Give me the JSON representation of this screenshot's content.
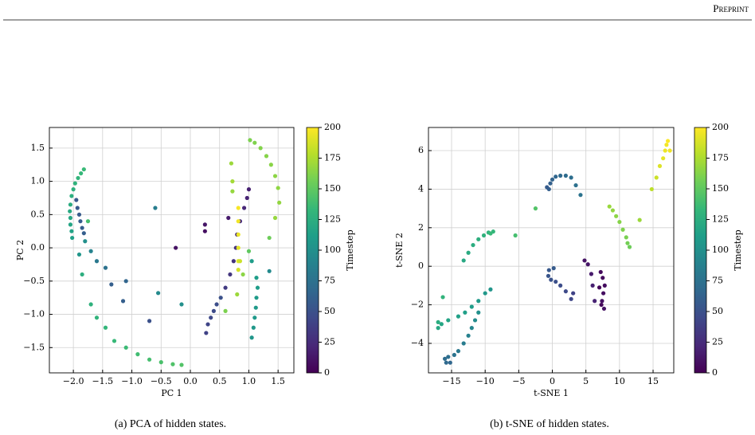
{
  "header": "Preprint",
  "chart_data": [
    {
      "type": "scatter",
      "xlabel": "PC 1",
      "ylabel": "PC 2",
      "caption": "(a) PCA of hidden states.",
      "xlim": [
        -2.41,
        1.77
      ],
      "ylim": [
        -1.88,
        1.81
      ],
      "xticks": [
        {
          "value": -2.0,
          "label": "−2.0"
        },
        {
          "value": -1.5,
          "label": "−1.5"
        },
        {
          "value": -1.0,
          "label": "−1.0"
        },
        {
          "value": -0.5,
          "label": "−0.5"
        },
        {
          "value": 0.0,
          "label": "0.0"
        },
        {
          "value": 0.5,
          "label": "0.5"
        },
        {
          "value": 1.0,
          "label": "1.0"
        },
        {
          "value": 1.5,
          "label": "1.5"
        }
      ],
      "yticks": [
        {
          "value": -1.5,
          "label": "−1.5"
        },
        {
          "value": -1.0,
          "label": "−1.0"
        },
        {
          "value": -0.5,
          "label": "−0.5"
        },
        {
          "value": 0.0,
          "label": "0.0"
        },
        {
          "value": 0.5,
          "label": "0.5"
        },
        {
          "value": 1.0,
          "label": "1.0"
        },
        {
          "value": 1.5,
          "label": "1.5"
        }
      ],
      "grid": true,
      "colorbar_label": "Timestep",
      "clim": [
        0,
        200
      ],
      "cticks": [
        0,
        25,
        50,
        75,
        100,
        125,
        150,
        175,
        200
      ],
      "colormap": [
        "#440154",
        "#482878",
        "#3e4989",
        "#31688e",
        "#26828e",
        "#1f9e89",
        "#35b779",
        "#6ece58",
        "#b5de2b",
        "#fde725"
      ],
      "x": [
        -1.82,
        -1.87,
        -1.92,
        -1.97,
        -2.0,
        -2.03,
        -2.05,
        -2.06,
        -2.05,
        -2.05,
        -2.03,
        -2.02,
        -1.95,
        -1.93,
        -1.9,
        -1.88,
        -1.85,
        -1.82,
        -1.75,
        -1.8,
        -1.7,
        -1.9,
        -1.6,
        -1.45,
        -1.35,
        -1.1,
        -1.15,
        -0.7,
        -0.55,
        -0.6,
        -0.25,
        -0.15,
        -1.85,
        -1.7,
        -1.6,
        -1.45,
        -1.3,
        -1.1,
        -0.9,
        -0.7,
        -0.5,
        -0.3,
        -0.15,
        0.27,
        0.3,
        0.35,
        0.4,
        0.45,
        0.52,
        0.6,
        0.68,
        0.74,
        0.78,
        0.8,
        0.85,
        0.92,
        0.97,
        1.0,
        0.65,
        0.25,
        0.25,
        0.82,
        0.82,
        0.82,
        0.82,
        0.82,
        0.82,
        0.8,
        0.7,
        0.72,
        0.72,
        0.6,
        0.85,
        0.9,
        1.0,
        1.05,
        1.05,
        1.08,
        1.1,
        1.12,
        1.13,
        1.15,
        1.13,
        1.02,
        1.1,
        1.2,
        1.3,
        1.38,
        1.45,
        1.5,
        1.52,
        1.45,
        1.35,
        1.35
      ],
      "y": [
        1.18,
        1.12,
        1.05,
        0.97,
        0.88,
        0.78,
        0.65,
        0.55,
        0.45,
        0.35,
        0.25,
        0.15,
        0.72,
        0.6,
        0.5,
        0.4,
        0.3,
        0.22,
        0.4,
        0.1,
        -0.05,
        -0.1,
        -0.2,
        -0.3,
        -0.55,
        -0.5,
        -0.8,
        -1.1,
        -0.68,
        0.6,
        0.0,
        -0.85,
        -0.4,
        -0.85,
        -1.05,
        -1.2,
        -1.4,
        -1.5,
        -1.6,
        -1.68,
        -1.72,
        -1.75,
        -1.76,
        -1.28,
        -1.15,
        -1.05,
        -0.95,
        -0.85,
        -0.75,
        -0.6,
        -0.4,
        -0.2,
        0.0,
        0.2,
        0.4,
        0.6,
        0.75,
        0.88,
        0.45,
        0.35,
        0.25,
        0.6,
        0.4,
        0.2,
        0.0,
        -0.2,
        -0.33,
        -0.7,
        1.27,
        1.0,
        0.85,
        -0.95,
        -0.2,
        -0.4,
        -0.05,
        -0.2,
        -1.35,
        -1.2,
        -1.05,
        -0.9,
        -0.75,
        -0.6,
        -0.45,
        1.62,
        1.58,
        1.5,
        1.38,
        1.25,
        1.08,
        0.9,
        0.68,
        0.45,
        0.15,
        -0.35
      ],
      "c": [
        135,
        133,
        131,
        129,
        127,
        125,
        123,
        121,
        119,
        117,
        115,
        113,
        55,
        56,
        57,
        58,
        59,
        60,
        140,
        100,
        90,
        105,
        80,
        75,
        60,
        65,
        60,
        50,
        95,
        85,
        10,
        100,
        125,
        128,
        130,
        132,
        134,
        136,
        138,
        140,
        142,
        144,
        145,
        40,
        42,
        44,
        46,
        48,
        50,
        35,
        32,
        30,
        28,
        26,
        24,
        22,
        20,
        18,
        15,
        12,
        8,
        198,
        196,
        194,
        192,
        190,
        188,
        170,
        170,
        172,
        168,
        160,
        185,
        165,
        150,
        110,
        105,
        106,
        107,
        108,
        109,
        110,
        111,
        160,
        161,
        162,
        163,
        164,
        165,
        166,
        167,
        168,
        155,
        95
      ]
    },
    {
      "type": "scatter",
      "xlabel": "t-SNE 1",
      "ylabel": "t-SNE 2",
      "caption": "(b) t-SNE of hidden states.",
      "xlim": [
        -18.44,
        18.08
      ],
      "ylim": [
        -5.53,
        7.2
      ],
      "xticks": [
        {
          "value": -15,
          "label": "−15"
        },
        {
          "value": -10,
          "label": "−10"
        },
        {
          "value": -5,
          "label": "−5"
        },
        0,
        5,
        10,
        15
      ],
      "yticks": [
        {
          "value": -4,
          "label": "−4"
        },
        {
          "value": -2,
          "label": "−2"
        },
        0,
        2,
        4,
        6
      ],
      "grid": true,
      "colorbar_label": "Timestep",
      "clim": [
        0,
        200
      ],
      "cticks": [
        0,
        25,
        50,
        75,
        100,
        125,
        150,
        175,
        200
      ],
      "colormap": [
        "#440154",
        "#482878",
        "#3e4989",
        "#31688e",
        "#26828e",
        "#1f9e89",
        "#35b779",
        "#6ece58",
        "#b5de2b",
        "#fde725"
      ],
      "x": [
        17.2,
        17.0,
        16.8,
        16.5,
        16.0,
        15.5,
        14.8,
        17.5,
        11.5,
        11.2,
        11.0,
        10.5,
        10.0,
        9.5,
        9.0,
        8.5,
        13.0,
        -13.2,
        -12.5,
        -11.8,
        -11.0,
        -10.2,
        -9.5,
        -8.8,
        -9.2,
        -5.5,
        -2.5,
        -0.5,
        -0.3,
        0.0,
        0.5,
        1.2,
        2.0,
        2.8,
        3.5,
        4.2,
        -0.8,
        -0.5,
        -0.6,
        -0.2,
        0.5,
        1.2,
        2.0,
        2.8,
        3.1,
        0.2,
        4.8,
        5.3,
        5.8,
        6.0,
        6.3,
        7.2,
        7.5,
        7.8,
        7.6,
        7.4,
        7.7,
        7.3,
        7.0,
        -17.0,
        -16.5,
        -15.5,
        -14.0,
        -13.0,
        -12.0,
        -11.0,
        -10.0,
        -9.2,
        -11.0,
        -11.5,
        -12.0,
        -12.5,
        -13.2,
        -14.0,
        -14.6,
        -15.5,
        -16.0,
        -15.8,
        -15.2,
        -16.3,
        -17.0
      ],
      "y": [
        6.5,
        6.3,
        6.0,
        5.6,
        5.2,
        4.6,
        4.0,
        6.0,
        1.0,
        1.2,
        1.5,
        1.9,
        2.3,
        2.6,
        2.9,
        3.1,
        2.4,
        0.3,
        0.7,
        1.1,
        1.4,
        1.6,
        1.75,
        1.8,
        1.7,
        1.6,
        3.0,
        4.0,
        4.3,
        4.5,
        4.65,
        4.7,
        4.7,
        4.6,
        4.2,
        3.7,
        4.1,
        -0.2,
        -0.5,
        -0.7,
        -0.8,
        -1.0,
        -1.3,
        -1.7,
        -1.4,
        -0.1,
        0.3,
        0.1,
        -0.4,
        -1.0,
        -1.8,
        -0.3,
        -0.6,
        -1.0,
        -1.4,
        -1.8,
        -2.2,
        -2.0,
        -1.1,
        -3.2,
        -3.0,
        -2.8,
        -2.6,
        -2.4,
        -2.1,
        -1.8,
        -1.4,
        -1.2,
        -2.4,
        -2.8,
        -3.2,
        -3.6,
        -4.0,
        -4.4,
        -4.6,
        -4.7,
        -4.8,
        -5.0,
        -5.0,
        -1.6,
        -2.9
      ],
      "c": [
        199,
        197,
        195,
        193,
        190,
        185,
        180,
        196,
        155,
        157,
        159,
        161,
        163,
        165,
        167,
        169,
        170,
        120,
        122,
        124,
        126,
        128,
        130,
        132,
        134,
        140,
        145,
        60,
        62,
        64,
        66,
        68,
        70,
        72,
        74,
        76,
        58,
        55,
        53,
        51,
        49,
        47,
        45,
        43,
        40,
        57,
        10,
        12,
        15,
        18,
        20,
        5,
        6,
        7,
        8,
        9,
        10,
        4,
        3,
        120,
        118,
        116,
        114,
        112,
        110,
        108,
        106,
        104,
        100,
        96,
        92,
        88,
        84,
        80,
        76,
        72,
        70,
        68,
        66,
        130,
        124
      ]
    }
  ]
}
